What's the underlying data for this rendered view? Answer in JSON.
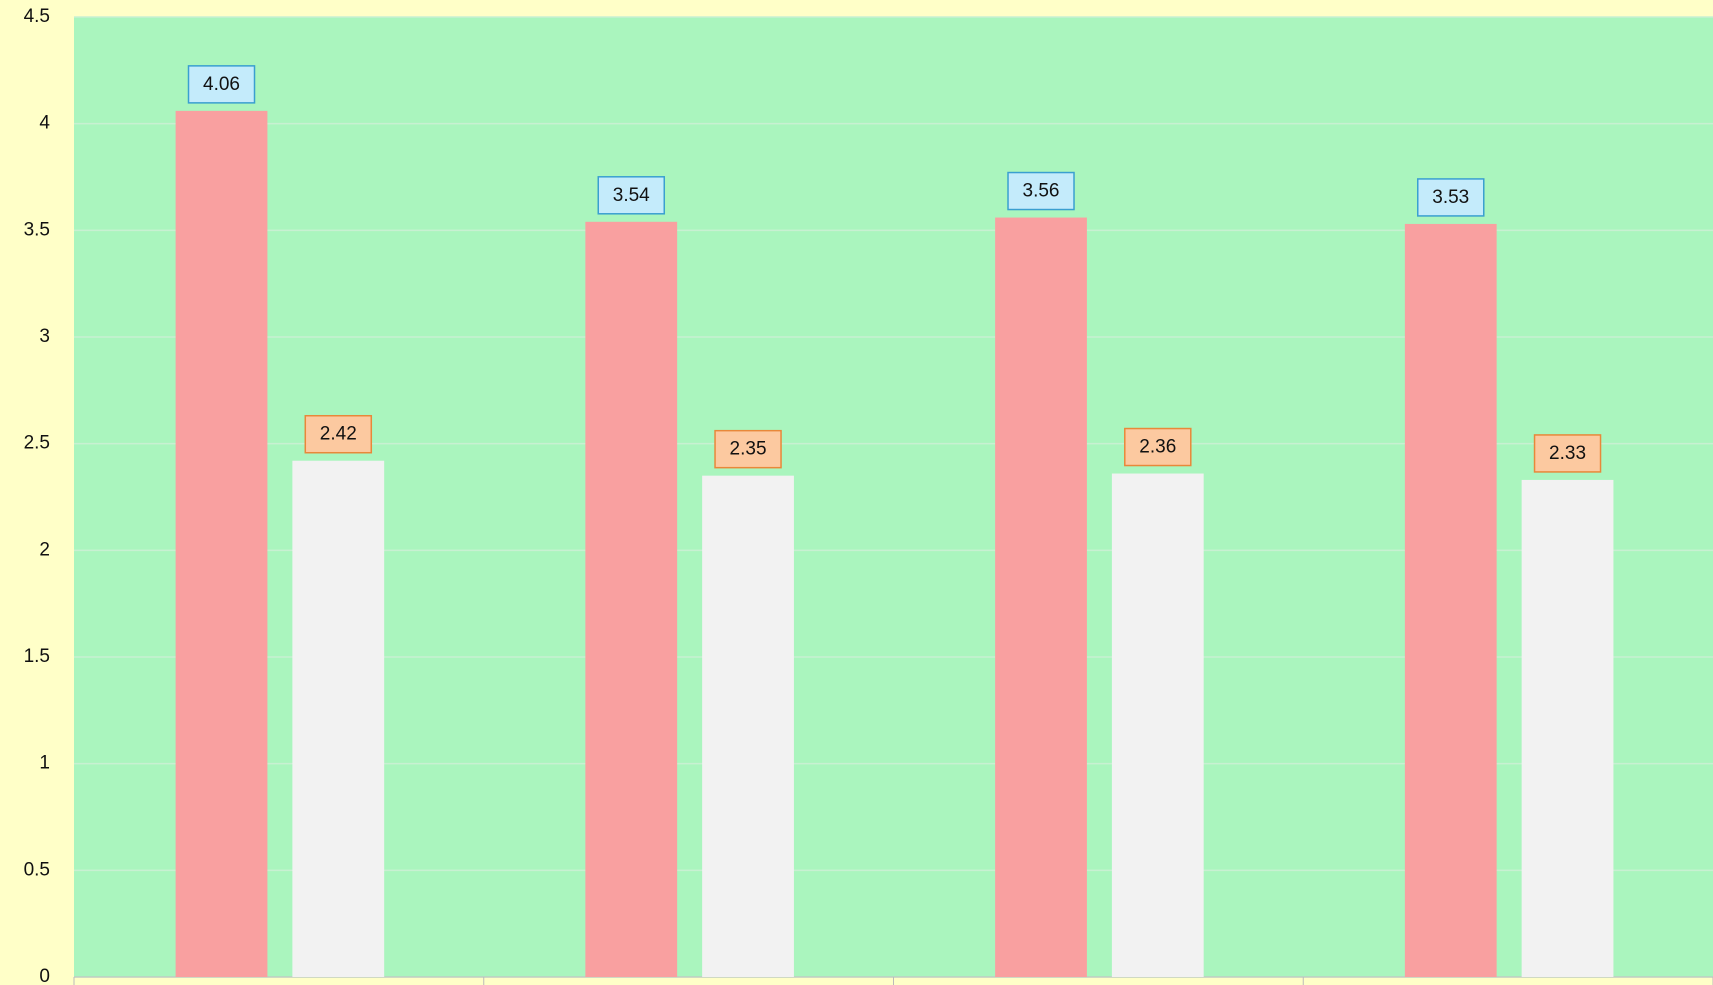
{
  "chart_data": {
    "type": "bar",
    "categories": [
      null,
      null,
      null,
      null
    ],
    "series": [
      {
        "color": "#f9a0a0",
        "label_fill": "#c4ebfb",
        "label_stroke": "#3a9fd0",
        "values": [
          4.06,
          3.54,
          3.56,
          3.53
        ]
      },
      {
        "color": "#f2f2f2",
        "label_fill": "#fcc9a0",
        "label_stroke": "#e8883a",
        "values": [
          2.42,
          2.35,
          2.36,
          2.33
        ]
      }
    ],
    "ylim": [
      0,
      4.5
    ],
    "yticks": [
      0,
      0.5,
      1,
      1.5,
      2,
      2.5,
      3,
      3.5,
      4,
      4.5
    ],
    "grid": true,
    "background": "#ffffc8",
    "plot_background": "#aaf5be"
  }
}
